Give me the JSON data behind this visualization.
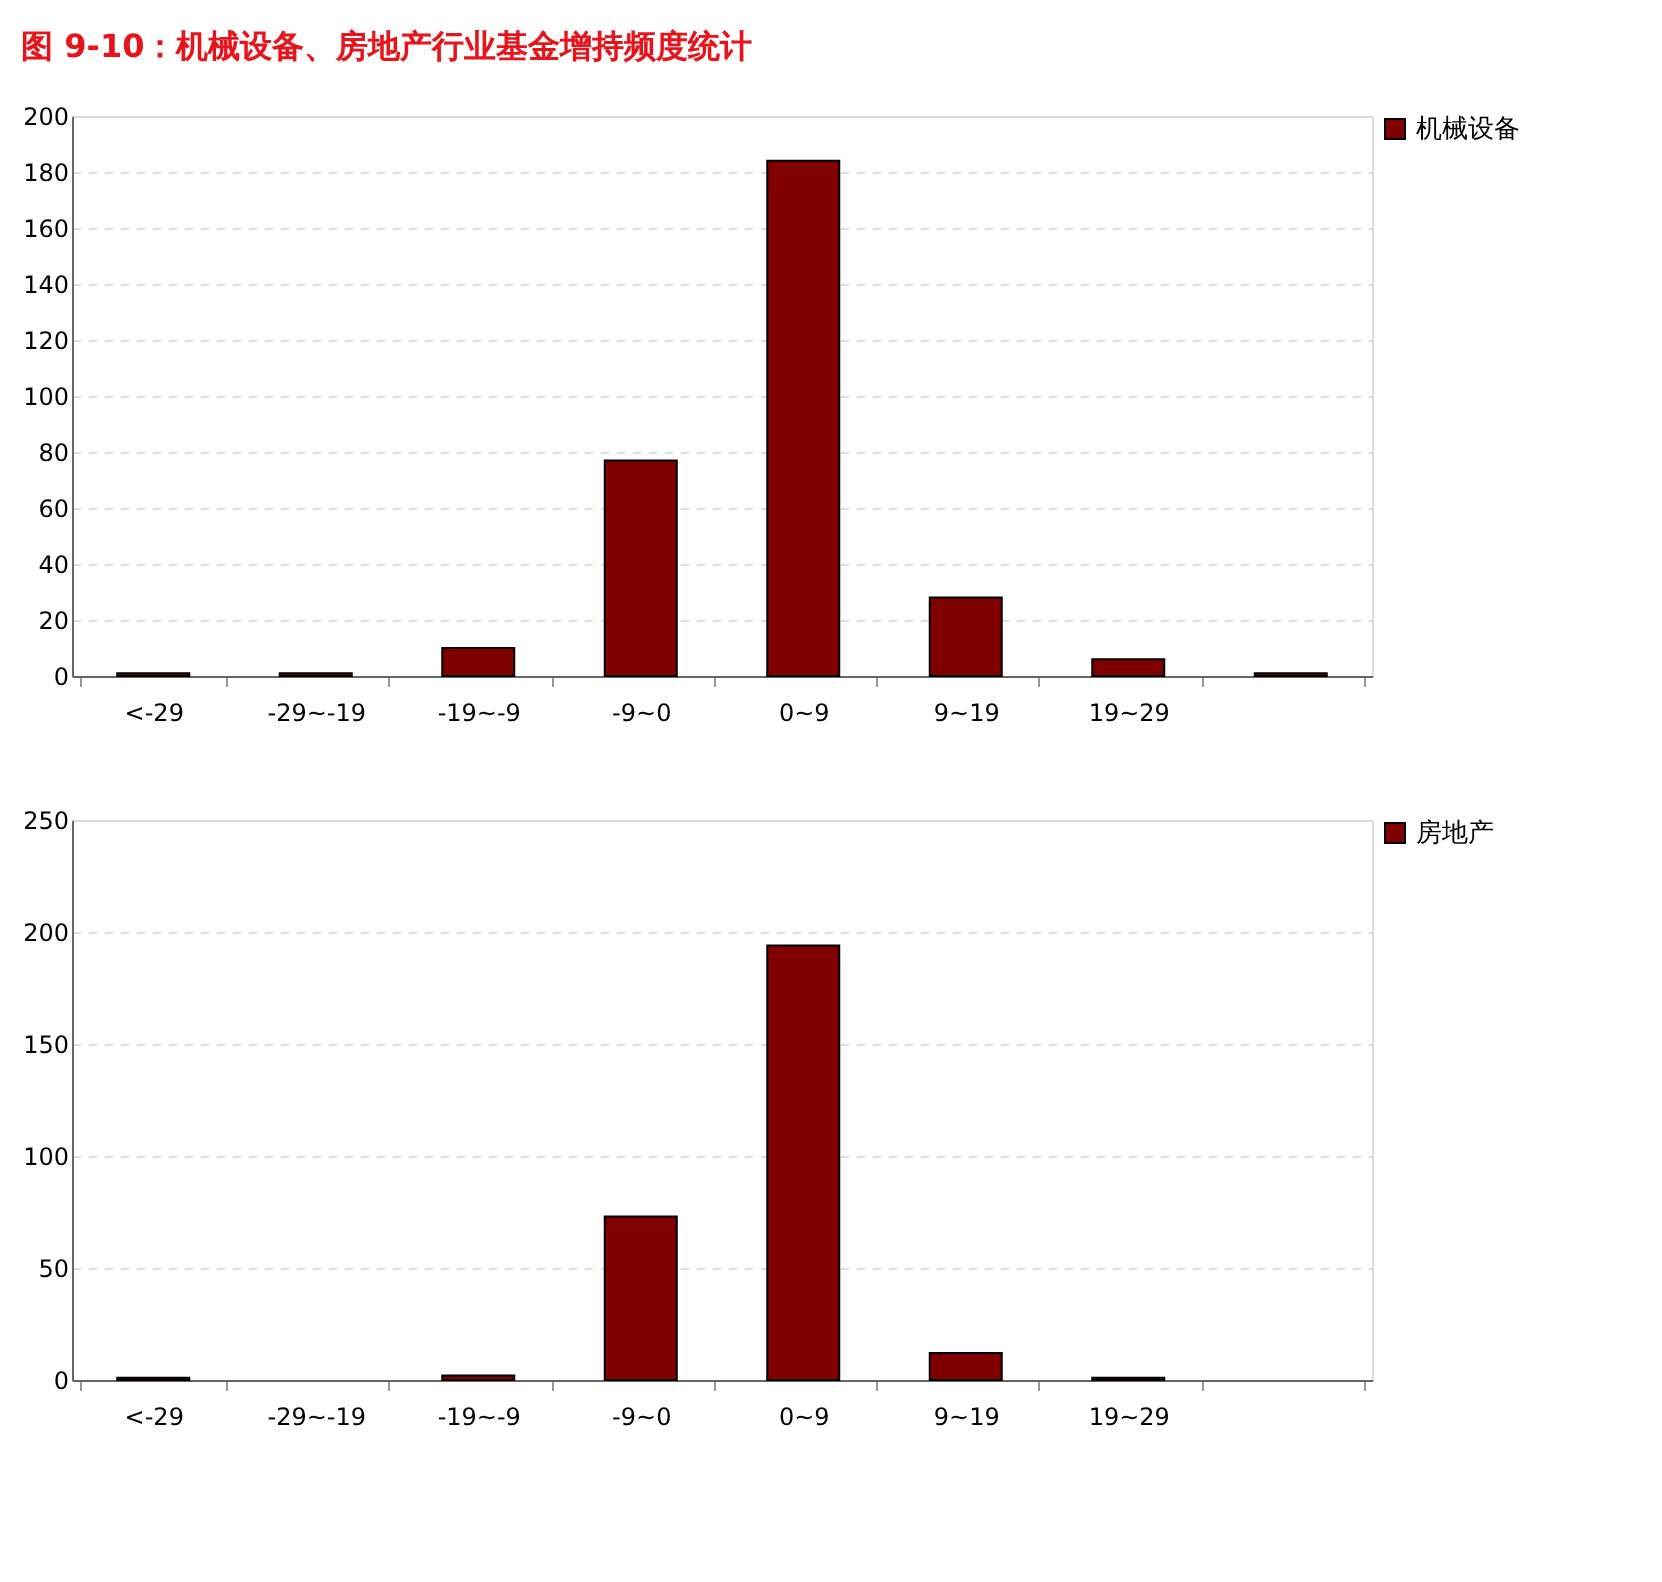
{
  "chart_data": [
    {
      "type": "bar",
      "title": "图 9-10：机械设备、房地产行业基金增持频度统计",
      "categories": [
        "<-29",
        "-29~-19",
        "-19~-9",
        "-9~0",
        "0~9",
        "9~19",
        "19~29",
        null
      ],
      "series": [
        {
          "name": "机械设备",
          "color": "#800000",
          "values": [
            1,
            1,
            10,
            77,
            184,
            28,
            6,
            1
          ]
        }
      ],
      "ylim": [
        0,
        200
      ],
      "yticks": [
        0,
        20,
        40,
        60,
        80,
        100,
        120,
        140,
        160,
        180,
        200
      ],
      "grid": "y",
      "legend": "right"
    },
    {
      "type": "bar",
      "categories": [
        "<-29",
        "-29~-19",
        "-19~-9",
        "-9~0",
        "0~9",
        "9~19",
        "19~29",
        null
      ],
      "series": [
        {
          "name": "房地产",
          "color": "#800000",
          "values": [
            1,
            0,
            2,
            73,
            194,
            12,
            1,
            0
          ]
        }
      ],
      "ylim": [
        0,
        250
      ],
      "yticks": [
        0,
        50,
        100,
        150,
        200,
        250
      ],
      "grid": "y",
      "legend": "right"
    }
  ]
}
